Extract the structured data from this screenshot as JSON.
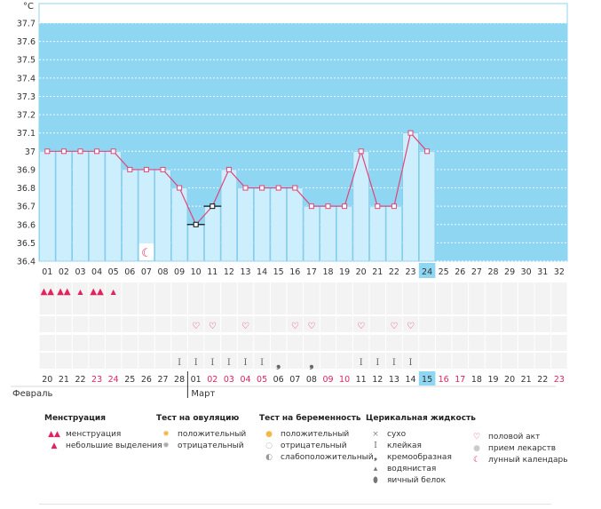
{
  "chart_data": {
    "type": "line",
    "ylabel": "°C",
    "ylim": [
      36.4,
      37.8
    ],
    "yticks": [
      "37.7",
      "37.6",
      "37.5",
      "37.4",
      "37.3",
      "37.2",
      "37.1",
      "37",
      "36.9",
      "36.8",
      "36.7",
      "36.6",
      "36.5",
      "36.4"
    ],
    "cycle_days": [
      "01",
      "02",
      "03",
      "04",
      "05",
      "06",
      "07",
      "08",
      "09",
      "10",
      "11",
      "12",
      "13",
      "14",
      "15",
      "16",
      "17",
      "18",
      "19",
      "20",
      "21",
      "22",
      "23",
      "24",
      "25",
      "26",
      "27",
      "28",
      "29",
      "30",
      "31",
      "32"
    ],
    "temperatures": [
      37.0,
      37.0,
      37.0,
      37.0,
      37.0,
      36.9,
      36.9,
      36.9,
      36.8,
      36.6,
      36.7,
      36.9,
      36.8,
      36.8,
      36.8,
      36.8,
      36.7,
      36.7,
      36.7,
      37.0,
      36.7,
      36.7,
      37.1,
      37.0
    ],
    "excluded_points": [
      10,
      11
    ],
    "highlighted_day": "24",
    "menstruation_days": [
      1,
      2,
      3,
      4,
      5
    ],
    "menstruation_heavy": [
      1,
      2,
      4
    ],
    "moon_day": 7,
    "intercourse_days": [
      10,
      11,
      13,
      16,
      17,
      20,
      22,
      23
    ],
    "mucus_sticky_days": [
      9,
      10,
      11,
      12,
      13,
      14,
      20,
      21,
      22,
      23
    ],
    "mucus_creamy_days": [
      15,
      17
    ],
    "calendar_dates": [
      "20",
      "21",
      "22",
      "23",
      "24",
      "25",
      "26",
      "27",
      "28",
      "01",
      "02",
      "03",
      "04",
      "05",
      "06",
      "07",
      "08",
      "09",
      "10",
      "11",
      "12",
      "13",
      "14",
      "15",
      "16",
      "17",
      "18",
      "19",
      "20",
      "21",
      "22",
      "23"
    ],
    "calendar_red": [
      3,
      4,
      10,
      11,
      12,
      13,
      17,
      18,
      24,
      25,
      31
    ],
    "today_index": 23,
    "months": [
      "Февраль",
      "Март"
    ],
    "month_start_index": 9
  },
  "colors": {
    "sky": "#8fd6f2",
    "bar": "#cdeefc",
    "bar_edge": "#7fc8ea",
    "line": "#e0457a",
    "grid_row": "#ebebeb",
    "today": "#8fd6f2",
    "red": "#e0245e"
  },
  "legend": {
    "menstruation": {
      "title": "Менструация",
      "items": [
        {
          "icon": "drop-double-icon",
          "glyph": "💧",
          "label": "менструация"
        },
        {
          "icon": "drop-icon",
          "glyph": "•",
          "label": "небольшие выделения"
        }
      ]
    },
    "ovulation_test": {
      "title": "Тест на овуляцию",
      "items": [
        {
          "icon": "positive-test-icon",
          "glyph": "●",
          "label": "положительный"
        },
        {
          "icon": "negative-test-icon",
          "glyph": "●",
          "label": "отрицательный"
        }
      ]
    },
    "pregnancy_test": {
      "title": "Тест на беременность",
      "items": [
        {
          "icon": "positive-test-icon",
          "glyph": "●",
          "label": "положительный"
        },
        {
          "icon": "negative-test-icon",
          "glyph": "○",
          "label": "отрицательный"
        },
        {
          "icon": "weak-positive-test-icon",
          "glyph": "◐",
          "label": "слабоположительный"
        }
      ]
    },
    "cervical_fluid": {
      "title": "Церикальная жидкость",
      "items": [
        {
          "icon": "dry-icon",
          "glyph": "×",
          "label": "сухо"
        },
        {
          "icon": "sticky-icon",
          "glyph": "I",
          "label": "клейкая"
        },
        {
          "icon": "creamy-icon",
          "glyph": "❟",
          "label": "кремообразная"
        },
        {
          "icon": "watery-icon",
          "glyph": "▴",
          "label": "водянистая"
        },
        {
          "icon": "egg-white-icon",
          "glyph": "⬮",
          "label": "яичный белок"
        }
      ]
    },
    "other": {
      "items": [
        {
          "icon": "heart-icon",
          "glyph": "♡",
          "label": "половой акт"
        },
        {
          "icon": "pill-icon",
          "glyph": "●",
          "label": "прием лекарств"
        },
        {
          "icon": "moon-icon",
          "glyph": "☾",
          "label": "лунный календарь"
        }
      ]
    }
  }
}
